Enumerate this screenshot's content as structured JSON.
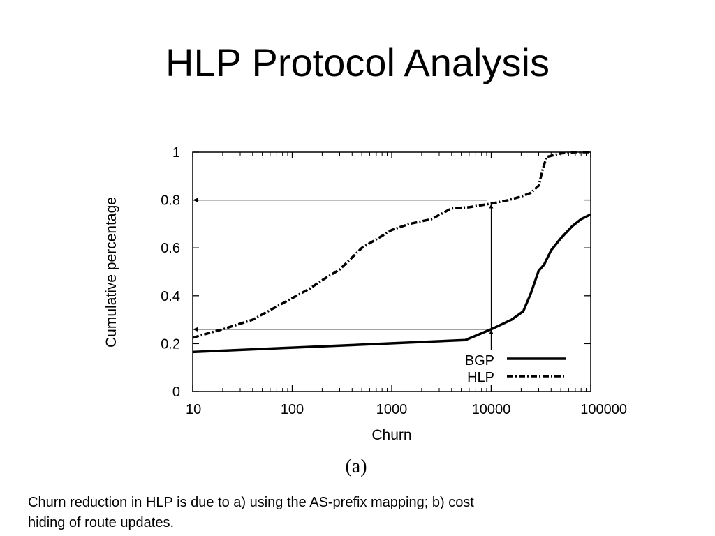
{
  "slide": {
    "title": "HLP Protocol Analysis",
    "caption": "Churn reduction in HLP is due to a) using the AS-prefix mapping; b) cost hiding of route updates."
  },
  "chart_data": {
    "type": "line",
    "xlabel": "Churn",
    "ylabel": "Cumulative percentage",
    "sublabel": "(a)",
    "x_scale": "log",
    "xlim": [
      10,
      100000
    ],
    "ylim": [
      0,
      1
    ],
    "x_ticks": [
      10,
      100,
      1000,
      10000,
      100000
    ],
    "x_tick_labels": [
      "10",
      "100",
      "1000",
      "10000",
      "100000"
    ],
    "y_ticks": [
      0,
      0.2,
      0.4,
      0.6,
      0.8,
      1
    ],
    "y_tick_labels": [
      "0",
      "0.2",
      "0.4",
      "0.6",
      "0.8",
      "1"
    ],
    "grid": false,
    "legend_position": "bottom-right",
    "series": [
      {
        "name": "BGP",
        "style": "solid",
        "color": "#000000",
        "points": [
          [
            10,
            0.165
          ],
          [
            5500,
            0.215
          ],
          [
            10000,
            0.26
          ],
          [
            16000,
            0.3
          ],
          [
            21000,
            0.335
          ],
          [
            25000,
            0.41
          ],
          [
            30000,
            0.505
          ],
          [
            34000,
            0.53
          ],
          [
            40000,
            0.59
          ],
          [
            50000,
            0.64
          ],
          [
            65000,
            0.69
          ],
          [
            80000,
            0.72
          ],
          [
            100000,
            0.74
          ]
        ]
      },
      {
        "name": "HLP",
        "style": "dash-dot",
        "color": "#000000",
        "points": [
          [
            10,
            0.225
          ],
          [
            20,
            0.26
          ],
          [
            40,
            0.3
          ],
          [
            60,
            0.34
          ],
          [
            100,
            0.39
          ],
          [
            150,
            0.43
          ],
          [
            200,
            0.465
          ],
          [
            300,
            0.51
          ],
          [
            400,
            0.56
          ],
          [
            500,
            0.6
          ],
          [
            800,
            0.65
          ],
          [
            1000,
            0.675
          ],
          [
            1500,
            0.7
          ],
          [
            2500,
            0.72
          ],
          [
            4000,
            0.765
          ],
          [
            6000,
            0.77
          ],
          [
            10000,
            0.785
          ],
          [
            15000,
            0.8
          ],
          [
            20000,
            0.815
          ],
          [
            25000,
            0.83
          ],
          [
            30000,
            0.86
          ],
          [
            33000,
            0.93
          ],
          [
            36000,
            0.98
          ],
          [
            50000,
            0.995
          ],
          [
            70000,
            1.0
          ],
          [
            100000,
            1.0
          ]
        ]
      }
    ],
    "annotations": [
      {
        "type": "arrow",
        "from": [
          9000,
          0.8
        ],
        "to": [
          10,
          0.8
        ]
      },
      {
        "type": "arrow",
        "from": [
          10000,
          0
        ],
        "to": [
          10000,
          0.785
        ]
      },
      {
        "type": "arrow",
        "from": [
          10000,
          0.26
        ],
        "to": [
          10,
          0.26
        ]
      },
      {
        "type": "arrow",
        "from": [
          10000,
          0.05
        ],
        "to": [
          10000,
          0.26
        ]
      }
    ]
  }
}
